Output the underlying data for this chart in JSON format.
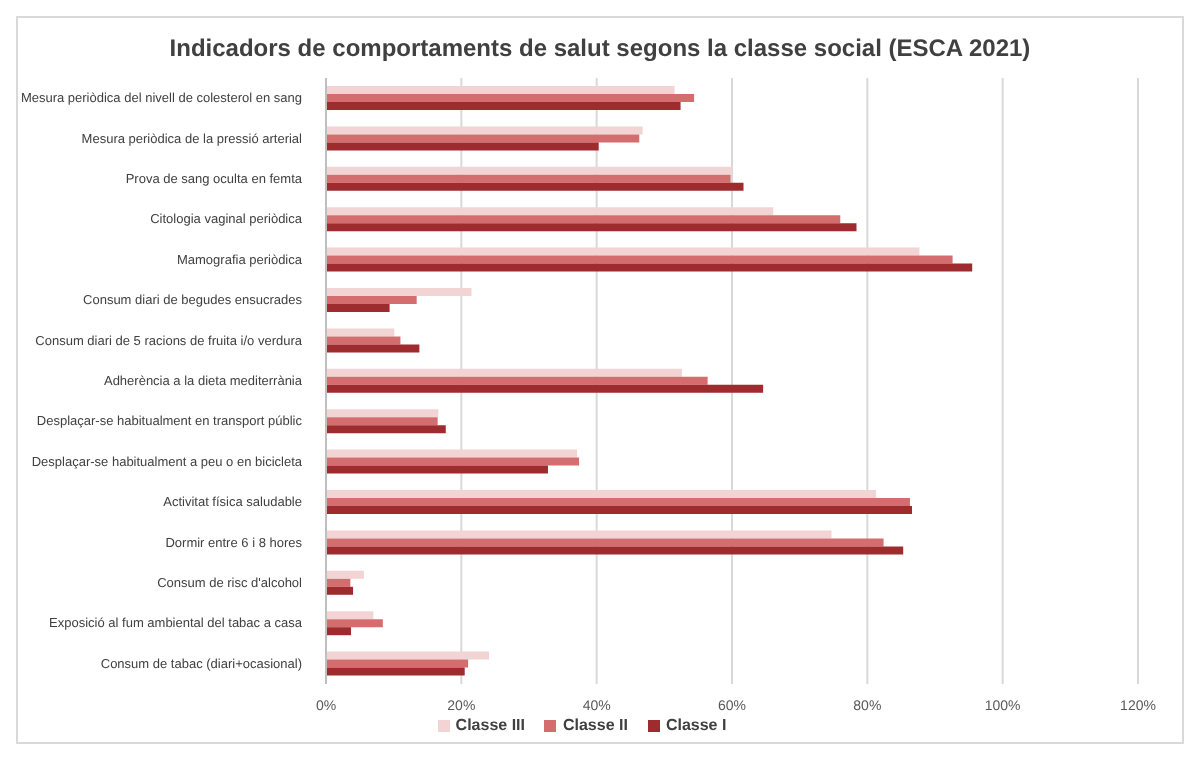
{
  "chart_data": {
    "type": "bar",
    "orientation": "horizontal",
    "title": "Indicadors de comportaments de salut segons la classe social (ESCA 2021)",
    "categories": [
      "Mesura periòdica del nivell de colesterol en sang",
      "Mesura periòdica de la pressió arterial",
      "Prova de sang oculta en femta",
      "Citologia vaginal periòdica",
      "Mamografia periòdica",
      "Consum diari de begudes ensucrades",
      "Consum diari de 5 racions de fruita i/o verdura",
      "Adherència a la dieta mediterrània",
      "Desplaçar-se habitualment en transport públic",
      "Desplaçar-se habitualment a peu o en bicicleta",
      "Activitat física saludable",
      "Dormir entre 6 i 8 hores",
      "Consum de risc d'alcohol",
      "Exposició al fum ambiental del tabac a casa",
      "Consum de tabac (diari+ocasional)"
    ],
    "series": [
      {
        "name": "Classe III",
        "color": "#f2d4d4",
        "values": [
          51.5,
          46.8,
          60,
          66.1,
          87.7,
          21.5,
          10.1,
          52.6,
          16.6,
          37.1,
          81.3,
          74.7,
          5.6,
          7,
          24.1
        ]
      },
      {
        "name": "Classe II",
        "color": "#d46d6d",
        "values": [
          54.4,
          46.3,
          59.8,
          76,
          92.6,
          13.4,
          11,
          56.4,
          16.5,
          37.4,
          86.3,
          82.4,
          3.6,
          8.4,
          21
        ]
      },
      {
        "name": "Classe I",
        "color": "#9e2b2e",
        "values": [
          52.4,
          40.3,
          61.7,
          78.4,
          95.5,
          9.4,
          13.8,
          64.6,
          17.7,
          32.8,
          86.6,
          85.3,
          4,
          3.7,
          20.5
        ]
      }
    ],
    "xlim": [
      0,
      120
    ],
    "xticks": [
      {
        "value": 0,
        "label": "0%"
      },
      {
        "value": 20,
        "label": "20%"
      },
      {
        "value": 40,
        "label": "40%"
      },
      {
        "value": 60,
        "label": "60%"
      },
      {
        "value": 80,
        "label": "80%"
      },
      {
        "value": 100,
        "label": "100%"
      },
      {
        "value": 120,
        "label": "120%"
      }
    ],
    "grid": "x",
    "legend": "bottom"
  }
}
